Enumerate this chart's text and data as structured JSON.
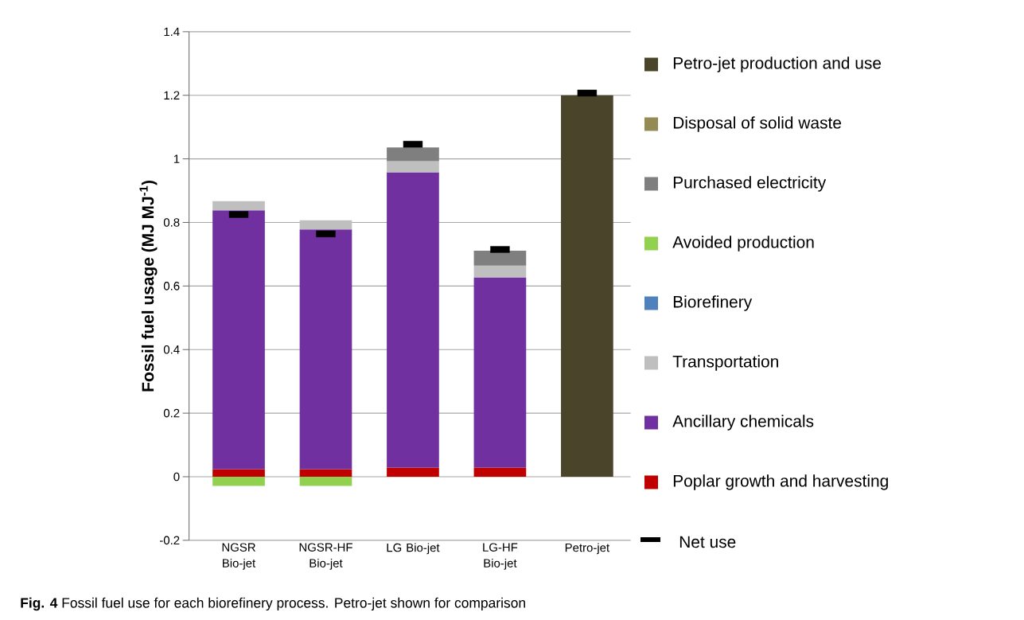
{
  "chart_data": {
    "type": "bar",
    "stacked": true,
    "ylabel": "**Fossil fuel usage (MJ MJ$^{-1}$)**",
    "categories": [
      "NGSR Bio-jet",
      "NGSR-HF Bio-jet",
      "LG Bio-jet",
      "LG-HF Bio-jet",
      "Petro-jet"
    ],
    "series": [
      {
        "name": "Poplar growth and harvesting",
        "color": "#c00000",
        "values": [
          0.024,
          0.024,
          0.029,
          0.029,
          0
        ]
      },
      {
        "name": "Ancillary chemicals",
        "color": "#7030a0",
        "values": [
          0.814,
          0.754,
          0.929,
          0.598,
          0
        ]
      },
      {
        "name": "Transportation",
        "color": "#bfbfbf",
        "values": [
          0.029,
          0.029,
          0.035,
          0.037,
          0
        ]
      },
      {
        "name": "Biorefinery",
        "color": "#4f81bd",
        "values": [
          0,
          0,
          0,
          0,
          0
        ]
      },
      {
        "name": "Avoided production",
        "color": "#92d050",
        "values": [
          -0.029,
          -0.029,
          0,
          0,
          0
        ]
      },
      {
        "name": "Purchased electricity",
        "color": "#7f7f7f",
        "values": [
          0,
          0,
          0.043,
          0.047,
          0
        ]
      },
      {
        "name": "Disposal of solid waste",
        "color": "#948a54",
        "values": [
          0,
          0,
          0,
          0,
          0
        ]
      },
      {
        "name": "Petro-jet production and use",
        "color": "#4a452a",
        "values": [
          0,
          0,
          0,
          0,
          1.2
        ]
      },
      {
        "name": "Net use",
        "type": "scatter",
        "color": "#000000",
        "x": [
          "NGSR Bio-jet",
          "NGSR-HF Bio-jet",
          "LG Bio-jet",
          "LG-HF Bio-jet",
          "Petro-jet"
        ],
        "values": [
          0.825,
          0.764,
          1.046,
          0.715,
          1.207
        ]
      }
    ],
    "ylim": [
      -0.2,
      1.4
    ],
    "yticks": [
      -0.2,
      0,
      0.2,
      0.4,
      0.6,
      0.8,
      1,
      1.2,
      1.4
    ],
    "grid": "y",
    "legend": "right",
    "annotations": [
      "**Fig. 4** Fossil fuel use for each biorefinery process. Petro-jet shown for comparison"
    ]
  }
}
